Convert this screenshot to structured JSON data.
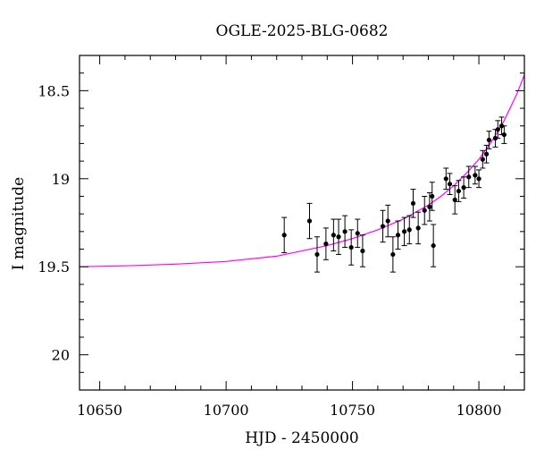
{
  "chart_data": {
    "type": "scatter",
    "title": "OGLE-2025-BLG-0682",
    "xlabel": "HJD - 2450000",
    "ylabel": "I magnitude",
    "xlim": [
      10642,
      10818
    ],
    "ylim": [
      20.2,
      18.3
    ],
    "y_inverted": true,
    "x_ticks": [
      10650,
      10700,
      10750,
      10800
    ],
    "x_tick_labels": [
      "10650",
      "10700",
      "10750",
      "10800"
    ],
    "y_ticks": [
      18.5,
      19,
      19.5,
      20
    ],
    "y_tick_labels": [
      "18.5",
      "19",
      "19.5",
      "20"
    ],
    "x_minor_step": 10,
    "y_minor_step": 0.1,
    "colors": {
      "data": "#000000",
      "model": "#ff00ff",
      "frame": "#000000"
    },
    "series": [
      {
        "kind": "points_with_errorbars",
        "points": [
          {
            "x": 10723.0,
            "y": 19.32,
            "err": 0.1
          },
          {
            "x": 10733.0,
            "y": 19.24,
            "err": 0.1
          },
          {
            "x": 10736.0,
            "y": 19.43,
            "err": 0.1
          },
          {
            "x": 10739.5,
            "y": 19.37,
            "err": 0.09
          },
          {
            "x": 10742.5,
            "y": 19.32,
            "err": 0.09
          },
          {
            "x": 10744.5,
            "y": 19.33,
            "err": 0.1
          },
          {
            "x": 10747.0,
            "y": 19.3,
            "err": 0.09
          },
          {
            "x": 10749.5,
            "y": 19.39,
            "err": 0.1
          },
          {
            "x": 10752.0,
            "y": 19.31,
            "err": 0.08
          },
          {
            "x": 10754.0,
            "y": 19.41,
            "err": 0.09
          },
          {
            "x": 10762.0,
            "y": 19.27,
            "err": 0.09
          },
          {
            "x": 10764.0,
            "y": 19.24,
            "err": 0.09
          },
          {
            "x": 10766.0,
            "y": 19.43,
            "err": 0.1
          },
          {
            "x": 10768.0,
            "y": 19.32,
            "err": 0.08
          },
          {
            "x": 10770.5,
            "y": 19.3,
            "err": 0.08
          },
          {
            "x": 10772.5,
            "y": 19.29,
            "err": 0.08
          },
          {
            "x": 10774.0,
            "y": 19.14,
            "err": 0.08
          },
          {
            "x": 10776.0,
            "y": 19.28,
            "err": 0.09
          },
          {
            "x": 10778.5,
            "y": 19.18,
            "err": 0.08
          },
          {
            "x": 10780.5,
            "y": 19.16,
            "err": 0.08
          },
          {
            "x": 10781.5,
            "y": 19.1,
            "err": 0.08
          },
          {
            "x": 10782.0,
            "y": 19.38,
            "err": 0.12
          },
          {
            "x": 10787.0,
            "y": 19.0,
            "err": 0.06
          },
          {
            "x": 10788.5,
            "y": 19.03,
            "err": 0.06
          },
          {
            "x": 10790.5,
            "y": 19.12,
            "err": 0.08
          },
          {
            "x": 10792.0,
            "y": 19.07,
            "err": 0.06
          },
          {
            "x": 10794.0,
            "y": 19.05,
            "err": 0.06
          },
          {
            "x": 10796.0,
            "y": 18.99,
            "err": 0.06
          },
          {
            "x": 10798.5,
            "y": 18.98,
            "err": 0.05
          },
          {
            "x": 10800.0,
            "y": 19.0,
            "err": 0.05
          },
          {
            "x": 10801.5,
            "y": 18.89,
            "err": 0.05
          },
          {
            "x": 10803.0,
            "y": 18.86,
            "err": 0.05
          },
          {
            "x": 10804.0,
            "y": 18.78,
            "err": 0.05
          },
          {
            "x": 10806.5,
            "y": 18.77,
            "err": 0.05
          },
          {
            "x": 10807.5,
            "y": 18.72,
            "err": 0.05
          },
          {
            "x": 10809.0,
            "y": 18.7,
            "err": 0.05
          },
          {
            "x": 10810.0,
            "y": 18.75,
            "err": 0.05
          }
        ]
      },
      {
        "kind": "model_curve",
        "x": [
          10642,
          10660,
          10680,
          10700,
          10720,
          10740,
          10750,
          10760,
          10770,
          10780,
          10785,
          10790,
          10795,
          10800,
          10805,
          10810,
          10815,
          10818
        ],
        "y": [
          19.5,
          19.495,
          19.485,
          19.47,
          19.44,
          19.38,
          19.34,
          19.29,
          19.23,
          19.15,
          19.1,
          19.04,
          18.97,
          18.89,
          18.79,
          18.67,
          18.52,
          18.41
        ]
      }
    ]
  }
}
